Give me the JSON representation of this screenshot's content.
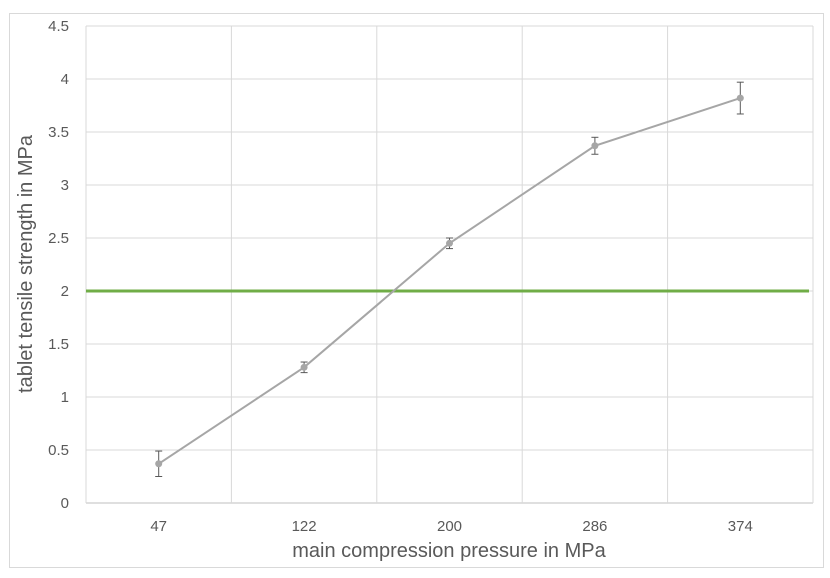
{
  "chart_data": {
    "type": "line",
    "title": "",
    "xlabel": "main compression pressure in MPa",
    "ylabel": "tablet tensile strength in MPa",
    "categories": [
      "47",
      "122",
      "200",
      "286",
      "374"
    ],
    "series": [
      {
        "name": "",
        "values": [
          0.37,
          1.28,
          2.45,
          3.37,
          3.82
        ],
        "error": [
          0.12,
          0.05,
          0.05,
          0.08,
          0.15
        ],
        "color": "#a6a6a6"
      }
    ],
    "reference_line": {
      "y": 2.0,
      "color": "#70ad47"
    },
    "ylim": [
      0,
      4.5
    ],
    "yticks": [
      "0",
      "0.5",
      "1",
      "1.5",
      "2",
      "2.5",
      "3",
      "3.5",
      "4",
      "4.5"
    ],
    "grid": true,
    "legend": "none"
  }
}
